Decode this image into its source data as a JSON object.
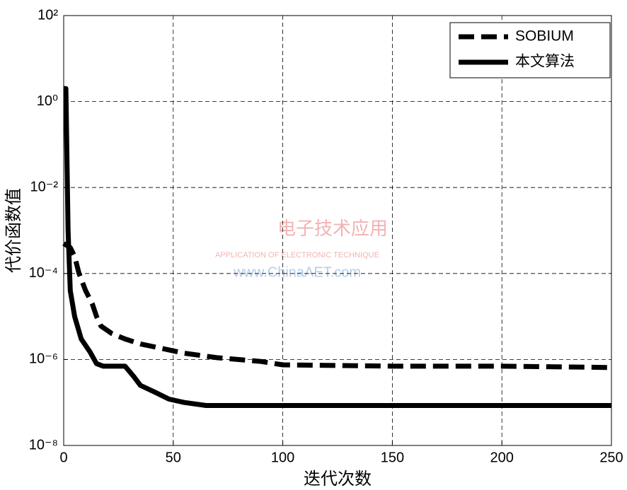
{
  "chart_data": {
    "type": "line",
    "log_y": true,
    "grid": true,
    "legend": "top-right",
    "xlabel": "迭代次数",
    "ylabel": "代价函数值",
    "xlim": [
      0,
      250
    ],
    "xticks": [
      0,
      50,
      100,
      150,
      200,
      250
    ],
    "ylim": [
      1e-08,
      100
    ],
    "yticks": [
      {
        "value": 1e-08,
        "label": "10⁻⁸"
      },
      {
        "value": 1e-06,
        "label": "10⁻⁶"
      },
      {
        "value": 0.0001,
        "label": "10⁻⁴"
      },
      {
        "value": 0.01,
        "label": "10⁻²"
      },
      {
        "value": 1,
        "label": "10⁰"
      },
      {
        "value": 100,
        "label": "10²"
      }
    ],
    "series": [
      {
        "name": "SOBIUM",
        "color": "#000000",
        "style": "dashed",
        "x": [
          0,
          3,
          5,
          7,
          10,
          13,
          15,
          17,
          22,
          28,
          35,
          45,
          55,
          70,
          90,
          100,
          150,
          200,
          250
        ],
        "values": [
          0.0005,
          0.0004,
          0.00025,
          0.0001,
          4e-05,
          2e-05,
          1e-05,
          6e-06,
          4e-06,
          3e-06,
          2.3e-06,
          1.8e-06,
          1.4e-06,
          1.1e-06,
          9e-07,
          7.5e-07,
          7e-07,
          7e-07,
          6.5e-07
        ]
      },
      {
        "name": "本文算法",
        "color": "#000000",
        "style": "solid",
        "x": [
          0,
          1,
          2,
          3,
          5,
          8,
          12,
          15,
          18,
          28,
          32,
          35,
          42,
          48,
          55,
          65,
          250
        ],
        "values": [
          2,
          2,
          0.001,
          4e-05,
          1e-05,
          3e-06,
          1.5e-06,
          8e-07,
          7e-07,
          7e-07,
          4e-07,
          2.5e-07,
          1.7e-07,
          1.2e-07,
          1e-07,
          8.5e-08,
          8.5e-08
        ]
      }
    ]
  },
  "watermark": {
    "title": "电子技术应用",
    "subtitle": "APPLICATION OF ELECTRONIC TECHNIQUE",
    "url": "www.ChinaAET.com"
  }
}
